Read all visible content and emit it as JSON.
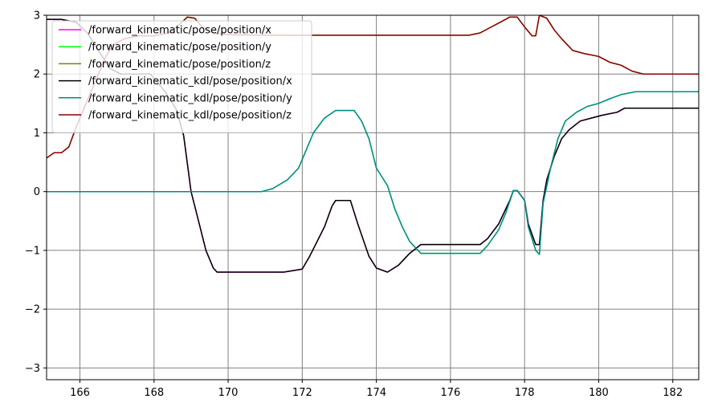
{
  "chart_data": {
    "type": "line",
    "title": "",
    "xlabel": "",
    "ylabel": "",
    "xlim": [
      165.1,
      182.7
    ],
    "ylim": [
      -3.2,
      3.0
    ],
    "grid": true,
    "legend_placement": "top-left",
    "x_ticks": [
      {
        "value": 166,
        "label": "166"
      },
      {
        "value": 168,
        "label": "168"
      },
      {
        "value": 170,
        "label": "170"
      },
      {
        "value": 172,
        "label": "172"
      },
      {
        "value": 174,
        "label": "174"
      },
      {
        "value": 176,
        "label": "176"
      },
      {
        "value": 178,
        "label": "178"
      },
      {
        "value": 180,
        "label": "180"
      },
      {
        "value": 182,
        "label": "182"
      }
    ],
    "y_ticks": [
      {
        "value": 3,
        "label": "3"
      },
      {
        "value": 2,
        "label": "2"
      },
      {
        "value": 1,
        "label": "1"
      },
      {
        "value": 0,
        "label": "0"
      },
      {
        "value": -1,
        "label": "−1"
      },
      {
        "value": -2,
        "label": "−2"
      },
      {
        "value": -3,
        "label": "−3"
      }
    ],
    "series": [
      {
        "name": "/forward_kinematic/pose/position/x",
        "color": "#ff00ff",
        "points": [
          [
            165.1,
            2.93
          ],
          [
            165.5,
            2.93
          ],
          [
            165.9,
            2.88
          ],
          [
            166.2,
            2.7
          ],
          [
            166.5,
            2.4
          ],
          [
            166.8,
            2.1
          ],
          [
            167.1,
            2.0
          ],
          [
            167.5,
            2.0
          ],
          [
            167.9,
            2.0
          ],
          [
            168.3,
            1.7
          ],
          [
            168.6,
            1.4
          ],
          [
            168.8,
            0.95
          ],
          [
            169.0,
            0.0
          ],
          [
            169.2,
            -0.5
          ],
          [
            169.4,
            -1.0
          ],
          [
            169.6,
            -1.3
          ],
          [
            169.7,
            -1.37
          ],
          [
            170.5,
            -1.37
          ],
          [
            171.5,
            -1.37
          ],
          [
            172.0,
            -1.32
          ],
          [
            172.2,
            -1.1
          ],
          [
            172.4,
            -0.85
          ],
          [
            172.6,
            -0.6
          ],
          [
            172.8,
            -0.25
          ],
          [
            172.9,
            -0.15
          ],
          [
            173.3,
            -0.15
          ],
          [
            173.5,
            -0.55
          ],
          [
            173.8,
            -1.1
          ],
          [
            174.0,
            -1.3
          ],
          [
            174.3,
            -1.37
          ],
          [
            174.6,
            -1.25
          ],
          [
            174.9,
            -1.05
          ],
          [
            175.2,
            -0.9
          ],
          [
            175.6,
            -0.9
          ],
          [
            176.8,
            -0.9
          ],
          [
            177.0,
            -0.8
          ],
          [
            177.3,
            -0.55
          ],
          [
            177.6,
            -0.15
          ],
          [
            177.7,
            0.02
          ],
          [
            177.8,
            0.02
          ],
          [
            178.0,
            -0.15
          ],
          [
            178.1,
            -0.55
          ],
          [
            178.3,
            -0.9
          ],
          [
            178.4,
            -0.9
          ],
          [
            178.5,
            -0.15
          ],
          [
            178.6,
            0.2
          ],
          [
            178.8,
            0.6
          ],
          [
            179.0,
            0.9
          ],
          [
            179.2,
            1.05
          ],
          [
            179.5,
            1.2
          ],
          [
            179.8,
            1.25
          ],
          [
            180.1,
            1.3
          ],
          [
            180.5,
            1.35
          ],
          [
            180.7,
            1.42
          ],
          [
            182.7,
            1.42
          ]
        ]
      },
      {
        "name": "/forward_kinematic/pose/position/y",
        "color": "#00ff00",
        "points": [
          [
            165.1,
            0.0
          ],
          [
            170.9,
            0.0
          ],
          [
            171.2,
            0.05
          ],
          [
            171.6,
            0.2
          ],
          [
            171.9,
            0.4
          ],
          [
            172.1,
            0.7
          ],
          [
            172.3,
            1.0
          ],
          [
            172.6,
            1.25
          ],
          [
            172.9,
            1.38
          ],
          [
            173.4,
            1.38
          ],
          [
            173.6,
            1.2
          ],
          [
            173.8,
            0.9
          ],
          [
            174.0,
            0.4
          ],
          [
            174.3,
            0.1
          ],
          [
            174.5,
            -0.3
          ],
          [
            174.7,
            -0.6
          ],
          [
            174.9,
            -0.85
          ],
          [
            175.2,
            -1.05
          ],
          [
            176.8,
            -1.05
          ],
          [
            177.0,
            -0.92
          ],
          [
            177.3,
            -0.65
          ],
          [
            177.5,
            -0.35
          ],
          [
            177.7,
            0.02
          ],
          [
            177.8,
            0.02
          ],
          [
            178.0,
            -0.15
          ],
          [
            178.1,
            -0.6
          ],
          [
            178.3,
            -1.0
          ],
          [
            178.4,
            -1.07
          ],
          [
            178.5,
            -0.2
          ],
          [
            178.7,
            0.4
          ],
          [
            178.9,
            0.9
          ],
          [
            179.1,
            1.2
          ],
          [
            179.4,
            1.35
          ],
          [
            179.7,
            1.45
          ],
          [
            180.0,
            1.5
          ],
          [
            180.3,
            1.58
          ],
          [
            180.6,
            1.65
          ],
          [
            181.0,
            1.7
          ],
          [
            182.7,
            1.7
          ]
        ]
      },
      {
        "name": "/forward_kinematic/pose/position/z",
        "color": "#808000",
        "points": [
          [
            165.1,
            0.57
          ],
          [
            165.3,
            0.66
          ],
          [
            165.5,
            0.66
          ],
          [
            165.7,
            0.76
          ],
          [
            165.9,
            1.1
          ],
          [
            166.1,
            1.4
          ],
          [
            166.3,
            1.7
          ],
          [
            166.5,
            2.0
          ],
          [
            166.7,
            2.3
          ],
          [
            166.9,
            2.5
          ],
          [
            167.2,
            2.6
          ],
          [
            167.6,
            2.65
          ],
          [
            168.0,
            2.65
          ],
          [
            168.4,
            2.7
          ],
          [
            168.7,
            2.85
          ],
          [
            168.9,
            2.97
          ],
          [
            169.1,
            2.95
          ],
          [
            169.3,
            2.8
          ],
          [
            169.6,
            2.7
          ],
          [
            170.0,
            2.67
          ],
          [
            171.0,
            2.66
          ],
          [
            176.5,
            2.66
          ],
          [
            176.8,
            2.7
          ],
          [
            177.1,
            2.8
          ],
          [
            177.4,
            2.9
          ],
          [
            177.6,
            2.97
          ],
          [
            177.8,
            2.97
          ],
          [
            178.0,
            2.8
          ],
          [
            178.2,
            2.65
          ],
          [
            178.3,
            2.65
          ],
          [
            178.4,
            3.0
          ],
          [
            178.6,
            2.95
          ],
          [
            178.8,
            2.75
          ],
          [
            179.0,
            2.6
          ],
          [
            179.3,
            2.4
          ],
          [
            179.6,
            2.35
          ],
          [
            180.0,
            2.3
          ],
          [
            180.3,
            2.2
          ],
          [
            180.6,
            2.15
          ],
          [
            180.9,
            2.05
          ],
          [
            181.2,
            2.0
          ],
          [
            182.7,
            2.0
          ]
        ]
      },
      {
        "name": "/forward_kinematic_kdl/pose/position/x",
        "color": "#000000",
        "points": [
          [
            165.1,
            2.93
          ],
          [
            165.5,
            2.93
          ],
          [
            165.9,
            2.88
          ],
          [
            166.2,
            2.7
          ],
          [
            166.5,
            2.4
          ],
          [
            166.8,
            2.1
          ],
          [
            167.1,
            2.0
          ],
          [
            167.5,
            2.0
          ],
          [
            167.9,
            2.0
          ],
          [
            168.3,
            1.7
          ],
          [
            168.6,
            1.4
          ],
          [
            168.8,
            0.95
          ],
          [
            169.0,
            0.0
          ],
          [
            169.2,
            -0.5
          ],
          [
            169.4,
            -1.0
          ],
          [
            169.6,
            -1.3
          ],
          [
            169.7,
            -1.37
          ],
          [
            170.5,
            -1.37
          ],
          [
            171.5,
            -1.37
          ],
          [
            172.0,
            -1.32
          ],
          [
            172.2,
            -1.1
          ],
          [
            172.4,
            -0.85
          ],
          [
            172.6,
            -0.6
          ],
          [
            172.8,
            -0.25
          ],
          [
            172.9,
            -0.15
          ],
          [
            173.3,
            -0.15
          ],
          [
            173.5,
            -0.55
          ],
          [
            173.8,
            -1.1
          ],
          [
            174.0,
            -1.3
          ],
          [
            174.3,
            -1.37
          ],
          [
            174.6,
            -1.25
          ],
          [
            174.9,
            -1.05
          ],
          [
            175.2,
            -0.9
          ],
          [
            175.6,
            -0.9
          ],
          [
            176.8,
            -0.9
          ],
          [
            177.0,
            -0.8
          ],
          [
            177.3,
            -0.55
          ],
          [
            177.6,
            -0.15
          ],
          [
            177.7,
            0.02
          ],
          [
            177.8,
            0.02
          ],
          [
            178.0,
            -0.15
          ],
          [
            178.1,
            -0.55
          ],
          [
            178.3,
            -0.9
          ],
          [
            178.4,
            -0.9
          ],
          [
            178.5,
            -0.15
          ],
          [
            178.6,
            0.2
          ],
          [
            178.8,
            0.6
          ],
          [
            179.0,
            0.9
          ],
          [
            179.2,
            1.05
          ],
          [
            179.5,
            1.2
          ],
          [
            179.8,
            1.25
          ],
          [
            180.1,
            1.3
          ],
          [
            180.5,
            1.35
          ],
          [
            180.7,
            1.42
          ],
          [
            182.7,
            1.42
          ]
        ]
      },
      {
        "name": "/forward_kinematic_kdl/pose/position/y",
        "color": "#008b8b",
        "points": [
          [
            165.1,
            0.0
          ],
          [
            170.9,
            0.0
          ],
          [
            171.2,
            0.05
          ],
          [
            171.6,
            0.2
          ],
          [
            171.9,
            0.4
          ],
          [
            172.1,
            0.7
          ],
          [
            172.3,
            1.0
          ],
          [
            172.6,
            1.25
          ],
          [
            172.9,
            1.38
          ],
          [
            173.4,
            1.38
          ],
          [
            173.6,
            1.2
          ],
          [
            173.8,
            0.9
          ],
          [
            174.0,
            0.4
          ],
          [
            174.3,
            0.1
          ],
          [
            174.5,
            -0.3
          ],
          [
            174.7,
            -0.6
          ],
          [
            174.9,
            -0.85
          ],
          [
            175.2,
            -1.05
          ],
          [
            176.8,
            -1.05
          ],
          [
            177.0,
            -0.92
          ],
          [
            177.3,
            -0.65
          ],
          [
            177.5,
            -0.35
          ],
          [
            177.7,
            0.02
          ],
          [
            177.8,
            0.02
          ],
          [
            178.0,
            -0.15
          ],
          [
            178.1,
            -0.6
          ],
          [
            178.3,
            -1.0
          ],
          [
            178.4,
            -1.07
          ],
          [
            178.5,
            -0.2
          ],
          [
            178.7,
            0.4
          ],
          [
            178.9,
            0.9
          ],
          [
            179.1,
            1.2
          ],
          [
            179.4,
            1.35
          ],
          [
            179.7,
            1.45
          ],
          [
            180.0,
            1.5
          ],
          [
            180.3,
            1.58
          ],
          [
            180.6,
            1.65
          ],
          [
            181.0,
            1.7
          ],
          [
            182.7,
            1.7
          ]
        ]
      },
      {
        "name": "/forward_kinematic_kdl/pose/position/z",
        "color": "#8b0000",
        "points": [
          [
            165.1,
            0.57
          ],
          [
            165.3,
            0.66
          ],
          [
            165.5,
            0.66
          ],
          [
            165.7,
            0.76
          ],
          [
            165.9,
            1.1
          ],
          [
            166.1,
            1.4
          ],
          [
            166.3,
            1.7
          ],
          [
            166.5,
            2.0
          ],
          [
            166.7,
            2.3
          ],
          [
            166.9,
            2.5
          ],
          [
            167.2,
            2.6
          ],
          [
            167.6,
            2.65
          ],
          [
            168.0,
            2.65
          ],
          [
            168.4,
            2.7
          ],
          [
            168.7,
            2.85
          ],
          [
            168.9,
            2.97
          ],
          [
            169.1,
            2.95
          ],
          [
            169.3,
            2.8
          ],
          [
            169.6,
            2.7
          ],
          [
            170.0,
            2.67
          ],
          [
            171.0,
            2.66
          ],
          [
            176.5,
            2.66
          ],
          [
            176.8,
            2.7
          ],
          [
            177.1,
            2.8
          ],
          [
            177.4,
            2.9
          ],
          [
            177.6,
            2.97
          ],
          [
            177.8,
            2.97
          ],
          [
            178.0,
            2.8
          ],
          [
            178.2,
            2.65
          ],
          [
            178.3,
            2.65
          ],
          [
            178.4,
            3.0
          ],
          [
            178.6,
            2.95
          ],
          [
            178.8,
            2.75
          ],
          [
            179.0,
            2.6
          ],
          [
            179.3,
            2.4
          ],
          [
            179.6,
            2.35
          ],
          [
            180.0,
            2.3
          ],
          [
            180.3,
            2.2
          ],
          [
            180.6,
            2.15
          ],
          [
            180.9,
            2.05
          ],
          [
            181.2,
            2.0
          ],
          [
            182.7,
            2.0
          ]
        ]
      }
    ]
  }
}
